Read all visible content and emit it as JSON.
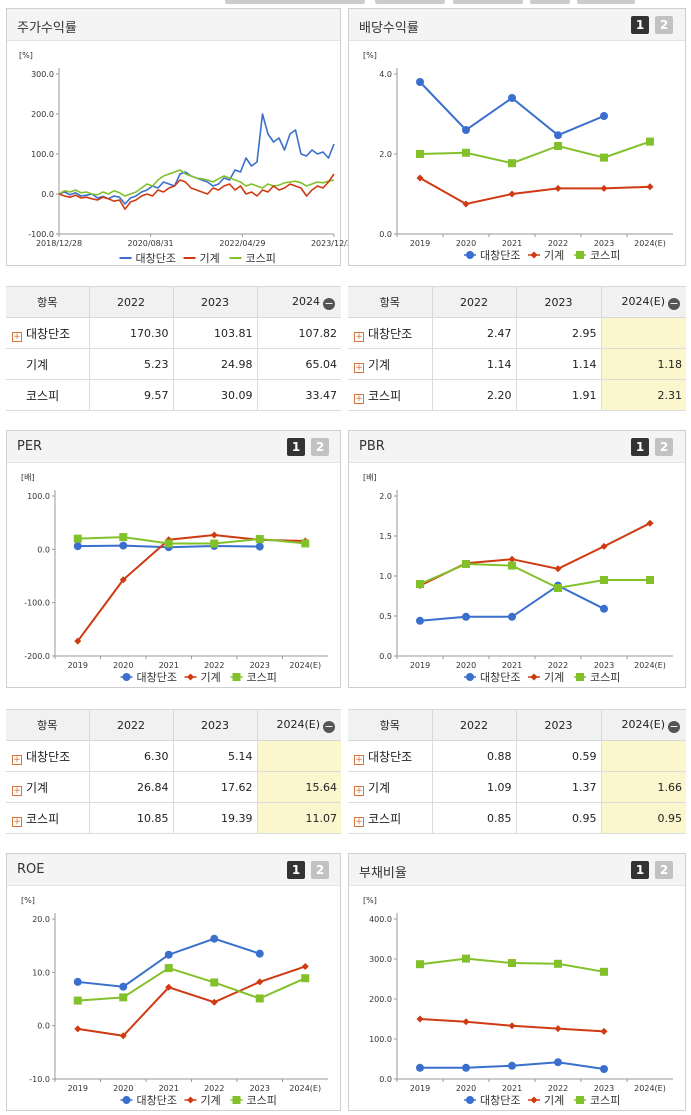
{
  "legend": [
    "대창단조",
    "기계",
    "코스피"
  ],
  "colors": {
    "s0": "#3a6fce",
    "s1": "#cf3a12",
    "s2": "#83c12a"
  },
  "toggles": [
    "1",
    "2"
  ],
  "panels": {
    "stock": {
      "title": "주가수익률"
    },
    "dividend": {
      "title": "배당수익률"
    },
    "per": {
      "title": "PER"
    },
    "pbr": {
      "title": "PBR"
    },
    "roe": {
      "title": "ROE"
    },
    "debt": {
      "title": "부채비율"
    }
  },
  "tables": {
    "stock": {
      "head": [
        "항목",
        "2022",
        "2023",
        "2024"
      ],
      "rows": [
        {
          "name": "대창단조",
          "plus": true,
          "values": [
            "170.30",
            "103.81",
            "107.82"
          ]
        },
        {
          "name": "기계",
          "plus": false,
          "values": [
            "5.23",
            "24.98",
            "65.04"
          ]
        },
        {
          "name": "코스피",
          "plus": false,
          "values": [
            "9.57",
            "30.09",
            "33.47"
          ]
        }
      ]
    },
    "dividend": {
      "head": [
        "항목",
        "2022",
        "2023",
        "2024(E)"
      ],
      "rows": [
        {
          "name": "대창단조",
          "plus": true,
          "values": [
            "2.47",
            "2.95",
            ""
          ]
        },
        {
          "name": "기계",
          "plus": true,
          "values": [
            "1.14",
            "1.14",
            "1.18"
          ]
        },
        {
          "name": "코스피",
          "plus": true,
          "values": [
            "2.20",
            "1.91",
            "2.31"
          ]
        }
      ]
    },
    "per": {
      "head": [
        "항목",
        "2022",
        "2023",
        "2024(E)"
      ],
      "rows": [
        {
          "name": "대창단조",
          "plus": true,
          "values": [
            "6.30",
            "5.14",
            ""
          ]
        },
        {
          "name": "기계",
          "plus": true,
          "values": [
            "26.84",
            "17.62",
            "15.64"
          ]
        },
        {
          "name": "코스피",
          "plus": true,
          "values": [
            "10.85",
            "19.39",
            "11.07"
          ]
        }
      ]
    },
    "pbr": {
      "head": [
        "항목",
        "2022",
        "2023",
        "2024(E)"
      ],
      "rows": [
        {
          "name": "대창단조",
          "plus": true,
          "values": [
            "0.88",
            "0.59",
            ""
          ]
        },
        {
          "name": "기계",
          "plus": true,
          "values": [
            "1.09",
            "1.37",
            "1.66"
          ]
        },
        {
          "name": "코스피",
          "plus": true,
          "values": [
            "0.85",
            "0.95",
            "0.95"
          ]
        }
      ]
    }
  },
  "chart_data": [
    {
      "id": "stock",
      "type": "line",
      "unit": "[%]",
      "ylim": [
        -100,
        300
      ],
      "yticks": [
        "-100.0",
        "0.0",
        "100.0",
        "200.0",
        "300.0"
      ],
      "xlim": [
        0,
        100
      ],
      "xticks": [
        "2018/12/28",
        "2020/08/31",
        "2022/04/29",
        "2023/12/28"
      ],
      "xtick_pos": [
        0,
        33.3,
        66.7,
        100
      ],
      "series": [
        {
          "name": "대창단조",
          "x": [
            0,
            2,
            4,
            6,
            8,
            10,
            12,
            14,
            16,
            18,
            20,
            22,
            24,
            26,
            28,
            30,
            32,
            34,
            36,
            38,
            40,
            42,
            44,
            46,
            48,
            50,
            52,
            54,
            56,
            58,
            60,
            62,
            64,
            66,
            68,
            70,
            72,
            74,
            76,
            78,
            80,
            82,
            84,
            86,
            88,
            90,
            92,
            94,
            96,
            98,
            100
          ],
          "y": [
            0,
            5,
            -2,
            3,
            -5,
            -3,
            0,
            -10,
            -6,
            -12,
            -5,
            -8,
            -25,
            -10,
            -5,
            5,
            10,
            20,
            15,
            30,
            25,
            20,
            50,
            55,
            45,
            40,
            35,
            30,
            20,
            25,
            40,
            35,
            60,
            55,
            90,
            70,
            80,
            200,
            150,
            130,
            140,
            110,
            150,
            160,
            100,
            95,
            110,
            100,
            105,
            90,
            125
          ]
        },
        {
          "name": "기계",
          "x": [
            0,
            2,
            4,
            6,
            8,
            10,
            12,
            14,
            16,
            18,
            20,
            22,
            24,
            26,
            28,
            30,
            32,
            34,
            36,
            38,
            40,
            42,
            44,
            46,
            48,
            50,
            52,
            54,
            56,
            58,
            60,
            62,
            64,
            66,
            68,
            70,
            72,
            74,
            76,
            78,
            80,
            82,
            84,
            86,
            88,
            90,
            92,
            94,
            96,
            98,
            100
          ],
          "y": [
            0,
            -5,
            -8,
            -3,
            -10,
            -8,
            -12,
            -15,
            -8,
            -12,
            -18,
            -15,
            -38,
            -20,
            -15,
            -5,
            0,
            -5,
            10,
            5,
            15,
            20,
            35,
            30,
            15,
            10,
            5,
            0,
            15,
            10,
            20,
            25,
            10,
            20,
            0,
            5,
            -5,
            10,
            5,
            20,
            10,
            15,
            25,
            20,
            15,
            -5,
            10,
            20,
            15,
            30,
            50
          ]
        },
        {
          "name": "코스피",
          "x": [
            0,
            2,
            4,
            6,
            8,
            10,
            12,
            14,
            16,
            18,
            20,
            22,
            24,
            26,
            28,
            30,
            32,
            34,
            36,
            38,
            40,
            42,
            44,
            46,
            48,
            50,
            52,
            54,
            56,
            58,
            60,
            62,
            64,
            66,
            68,
            70,
            72,
            74,
            76,
            78,
            80,
            82,
            84,
            86,
            88,
            90,
            92,
            94,
            96,
            98,
            100
          ],
          "y": [
            0,
            8,
            5,
            10,
            3,
            5,
            0,
            -2,
            5,
            0,
            8,
            3,
            -5,
            0,
            5,
            15,
            25,
            20,
            35,
            45,
            50,
            55,
            60,
            50,
            45,
            40,
            38,
            35,
            30,
            38,
            45,
            40,
            35,
            30,
            20,
            25,
            20,
            15,
            25,
            20,
            22,
            28,
            30,
            32,
            28,
            20,
            25,
            30,
            28,
            32,
            35
          ]
        }
      ]
    },
    {
      "id": "dividend",
      "type": "line",
      "unit": "[%]",
      "ylim": [
        0,
        4
      ],
      "yticks": [
        "0.0",
        "2.0",
        "4.0"
      ],
      "categories": [
        "2019",
        "2020",
        "2021",
        "2022",
        "2023",
        "2024(E)"
      ],
      "series": [
        {
          "name": "대창단조",
          "marker": "circle",
          "values": [
            3.8,
            2.6,
            3.4,
            2.47,
            2.95,
            null
          ]
        },
        {
          "name": "기계",
          "marker": "diamond",
          "values": [
            1.4,
            0.75,
            1.0,
            1.14,
            1.14,
            1.18
          ]
        },
        {
          "name": "코스피",
          "marker": "square",
          "values": [
            2.0,
            2.03,
            1.77,
            2.2,
            1.91,
            2.31
          ]
        }
      ]
    },
    {
      "id": "per",
      "type": "line",
      "unit": "[배]",
      "ylim": [
        -200,
        100
      ],
      "yticks": [
        "-200.0",
        "-100.0",
        "0.0",
        "100.0"
      ],
      "categories": [
        "2019",
        "2020",
        "2021",
        "2022",
        "2023",
        "2024(E)"
      ],
      "series": [
        {
          "name": "대창단조",
          "marker": "circle",
          "values": [
            6,
            7,
            4,
            6.3,
            5.14,
            null
          ]
        },
        {
          "name": "기계",
          "marker": "diamond",
          "values": [
            -172,
            -57,
            18,
            26.84,
            17.62,
            15.64
          ]
        },
        {
          "name": "코스피",
          "marker": "square",
          "values": [
            20,
            23,
            11,
            10.85,
            19.39,
            11.07
          ]
        }
      ]
    },
    {
      "id": "pbr",
      "type": "line",
      "unit": "[배]",
      "ylim": [
        0,
        2
      ],
      "yticks": [
        "0.0",
        "0.5",
        "1.0",
        "1.5",
        "2.0"
      ],
      "categories": [
        "2019",
        "2020",
        "2021",
        "2022",
        "2023",
        "2024(E)"
      ],
      "series": [
        {
          "name": "대창단조",
          "marker": "circle",
          "values": [
            0.44,
            0.49,
            0.49,
            0.88,
            0.59,
            null
          ]
        },
        {
          "name": "기계",
          "marker": "diamond",
          "values": [
            0.88,
            1.16,
            1.21,
            1.09,
            1.37,
            1.66
          ]
        },
        {
          "name": "코스피",
          "marker": "square",
          "values": [
            0.9,
            1.15,
            1.13,
            0.85,
            0.95,
            0.95
          ]
        }
      ]
    },
    {
      "id": "roe",
      "type": "line",
      "unit": "[%]",
      "ylim": [
        -10,
        20
      ],
      "yticks": [
        "-10.0",
        "0.0",
        "10.0",
        "20.0"
      ],
      "categories": [
        "2019",
        "2020",
        "2021",
        "2022",
        "2023",
        "2024(E)"
      ],
      "series": [
        {
          "name": "대창단조",
          "marker": "circle",
          "values": [
            8.2,
            7.3,
            13.3,
            16.3,
            13.5,
            null
          ]
        },
        {
          "name": "기계",
          "marker": "diamond",
          "values": [
            -0.6,
            -1.9,
            7.2,
            4.4,
            8.2,
            11.1
          ]
        },
        {
          "name": "코스피",
          "marker": "square",
          "values": [
            4.7,
            5.3,
            10.8,
            8.1,
            5.1,
            8.9
          ]
        }
      ]
    },
    {
      "id": "debt",
      "type": "line",
      "unit": "[%]",
      "ylim": [
        0,
        400
      ],
      "yticks": [
        "0.0",
        "100.0",
        "200.0",
        "300.0",
        "400.0"
      ],
      "categories": [
        "2019",
        "2020",
        "2021",
        "2022",
        "2023",
        "2024(E)"
      ],
      "series": [
        {
          "name": "대창단조",
          "marker": "circle",
          "values": [
            28,
            28,
            33,
            42,
            25,
            null
          ]
        },
        {
          "name": "기계",
          "marker": "diamond",
          "values": [
            150,
            143,
            133,
            126,
            119,
            null
          ]
        },
        {
          "name": "코스피",
          "marker": "square",
          "values": [
            287,
            301,
            290,
            288,
            268,
            null
          ]
        }
      ]
    }
  ]
}
